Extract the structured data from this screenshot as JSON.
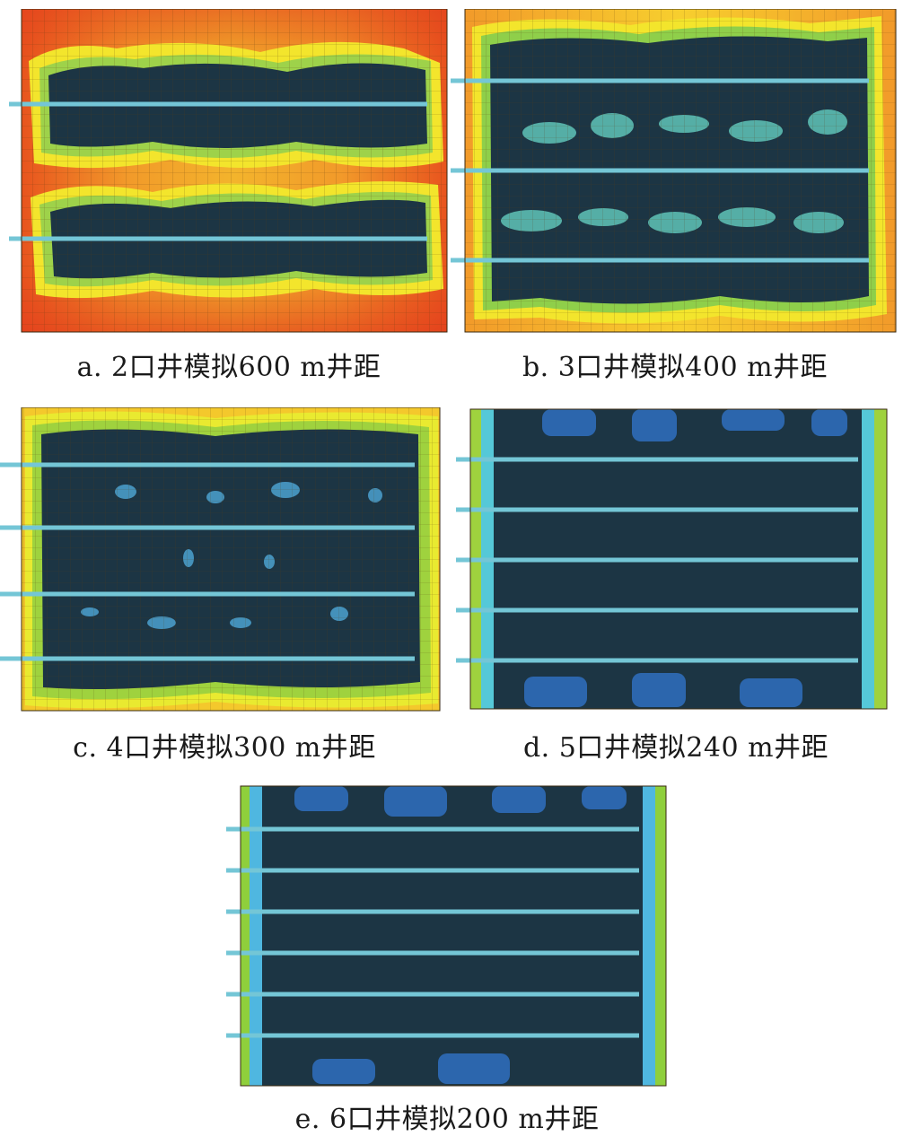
{
  "figure": {
    "panels": [
      {
        "id": "a",
        "caption": "a. 2口井模拟600 m井距",
        "wells": 2,
        "spacing_m": 600,
        "colors": {
          "edge": "#e23a1c",
          "mid": "#f2a62a",
          "ring": "#f5e22a"
        }
      },
      {
        "id": "b",
        "caption": "b. 3口井模拟400 m井距",
        "wells": 3,
        "spacing_m": 400,
        "colors": {
          "edge": "#f29a2a",
          "mid": "#f7cf2e",
          "ring": "#f5ea2c"
        }
      },
      {
        "id": "c",
        "caption": "c. 4口井模拟300 m井距",
        "wells": 4,
        "spacing_m": 300,
        "colors": {
          "edge": "#f4c22c",
          "mid": "#f3df2c",
          "ring": "#e9ea30"
        }
      },
      {
        "id": "d",
        "caption": "d. 5口井模拟240 m井距",
        "wells": 5,
        "spacing_m": 240,
        "colors": {
          "edge": "#9fd23e",
          "mid": "#5fc46a",
          "ring": "#55c8d8"
        }
      },
      {
        "id": "e",
        "caption": "e. 6口井模拟200 m井距",
        "wells": 6,
        "spacing_m": 200,
        "colors": {
          "edge": "#8fcf3c",
          "mid": "#4fbf86",
          "ring": "#4fb7e0"
        }
      }
    ],
    "core_color": "#1c3544",
    "well_color": "#74c6d6",
    "grid_color": "#3a2a10"
  }
}
